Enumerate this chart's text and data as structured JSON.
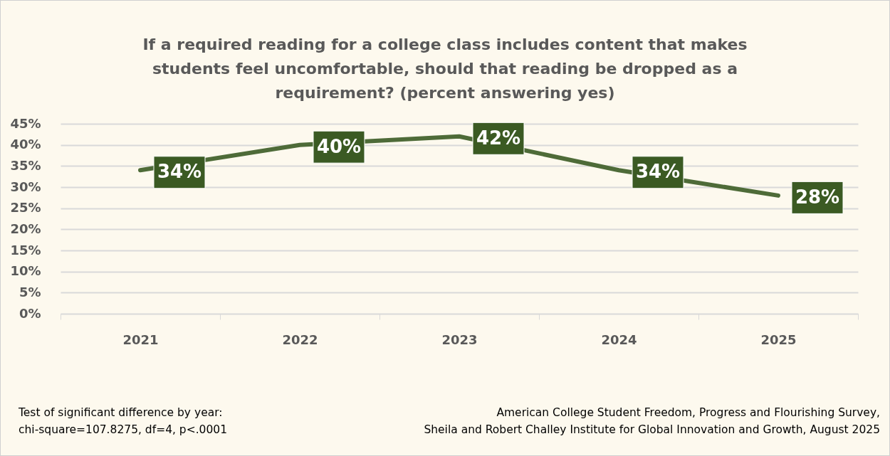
{
  "chart_data": {
    "type": "line",
    "title": "If a required reading for a college class includes content that makes students feel uncomfortable, should that reading be dropped as a requirement? (percent answering yes)",
    "categories": [
      "2021",
      "2022",
      "2023",
      "2024",
      "2025"
    ],
    "series": [
      {
        "color": "#4e6b38",
        "values": [
          34,
          40,
          42,
          34,
          28
        ],
        "value_labels": [
          "34%",
          "40%",
          "42%",
          "34%",
          "28%"
        ]
      }
    ],
    "ylim": [
      0,
      45
    ],
    "yticks": [
      {
        "value": 0,
        "label": "0%"
      },
      {
        "value": 5,
        "label": "5%"
      },
      {
        "value": 10,
        "label": "10%"
      },
      {
        "value": 15,
        "label": "15%"
      },
      {
        "value": 20,
        "label": "20%"
      },
      {
        "value": 25,
        "label": "25%"
      },
      {
        "value": 30,
        "label": "30%"
      },
      {
        "value": 35,
        "label": "35%"
      },
      {
        "value": 40,
        "label": "40%"
      },
      {
        "value": 45,
        "label": "45%"
      }
    ],
    "grid": "y",
    "annotations": [
      "Test of significant difference by year:",
      "chi-square=107.8275, df=4, p<.0001",
      "American College Student Freedom, Progress and Flourishing Survey,",
      "Sheila and Robert Challey Institute for Global Innovation and Growth, August 2025"
    ]
  }
}
